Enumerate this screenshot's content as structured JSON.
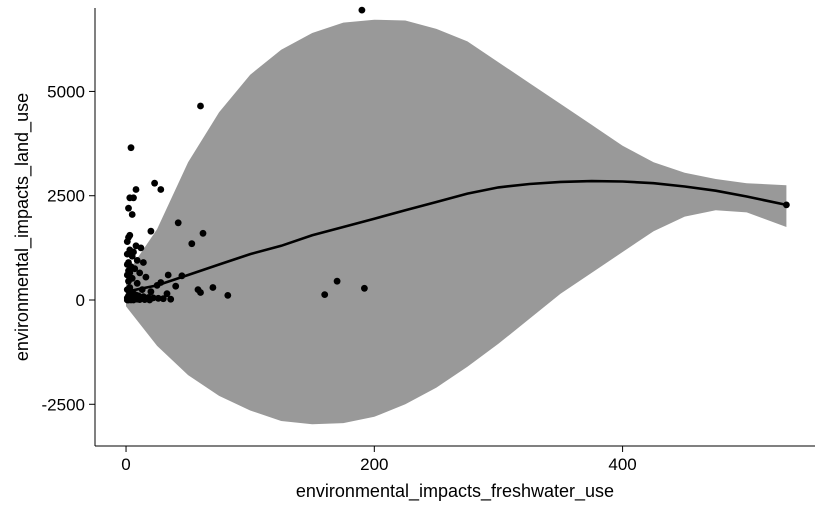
{
  "chart_data": {
    "type": "scatter",
    "title": "",
    "xlabel": "environmental_impacts_freshwater_use",
    "ylabel": "environmental_impacts_land_use",
    "xlim": [
      -25,
      555
    ],
    "ylim": [
      -3500,
      7000
    ],
    "x_ticks": [
      0,
      200,
      400
    ],
    "y_ticks": [
      -2500,
      0,
      2500,
      5000
    ],
    "grid": false,
    "legend": "none",
    "colors": {
      "points": "#000000",
      "trend": "#000000",
      "band": "#999999"
    },
    "points": [
      [
        190,
        6950
      ],
      [
        60,
        4650
      ],
      [
        4,
        3650
      ],
      [
        23,
        2800
      ],
      [
        28,
        2650
      ],
      [
        8,
        2650
      ],
      [
        6,
        2450
      ],
      [
        3,
        2450
      ],
      [
        2,
        2200
      ],
      [
        5,
        2050
      ],
      [
        42,
        1850
      ],
      [
        20,
        1650
      ],
      [
        62,
        1600
      ],
      [
        3,
        1550
      ],
      [
        2,
        1500
      ],
      [
        1,
        1400
      ],
      [
        53,
        1350
      ],
      [
        8,
        1300
      ],
      [
        12,
        1250
      ],
      [
        3,
        1200
      ],
      [
        6,
        1150
      ],
      [
        1,
        1100
      ],
      [
        5,
        1050
      ],
      [
        9,
        950
      ],
      [
        2,
        900
      ],
      [
        14,
        900
      ],
      [
        1,
        850
      ],
      [
        4,
        800
      ],
      [
        7,
        750
      ],
      [
        2,
        700
      ],
      [
        3,
        650
      ],
      [
        11,
        650
      ],
      [
        1,
        600
      ],
      [
        34,
        600
      ],
      [
        45,
        580
      ],
      [
        16,
        550
      ],
      [
        5,
        520
      ],
      [
        170,
        450
      ],
      [
        2,
        450
      ],
      [
        28,
        420
      ],
      [
        25,
        350
      ],
      [
        9,
        400
      ],
      [
        40,
        330
      ],
      [
        70,
        300
      ],
      [
        192,
        280
      ],
      [
        58,
        250
      ],
      [
        60,
        180
      ],
      [
        3,
        300
      ],
      [
        13,
        250
      ],
      [
        20,
        200
      ],
      [
        33,
        150
      ],
      [
        160,
        130
      ],
      [
        82,
        110
      ],
      [
        1,
        250
      ],
      [
        4,
        200
      ],
      [
        6,
        150
      ],
      [
        8,
        120
      ],
      [
        10,
        100
      ],
      [
        14,
        80
      ],
      [
        18,
        60
      ],
      [
        22,
        50
      ],
      [
        26,
        40
      ],
      [
        30,
        30
      ],
      [
        36,
        20
      ],
      [
        2,
        100
      ],
      [
        1,
        50
      ],
      [
        3,
        30
      ],
      [
        5,
        10
      ],
      [
        7,
        60
      ],
      [
        9,
        20
      ],
      [
        11,
        10
      ],
      [
        15,
        10
      ],
      [
        19,
        0
      ],
      [
        1,
        0
      ],
      [
        2,
        0
      ],
      [
        4,
        0
      ],
      [
        6,
        0
      ],
      [
        532,
        2280
      ]
    ],
    "trend": {
      "x": [
        0,
        25,
        50,
        75,
        100,
        125,
        150,
        175,
        200,
        225,
        250,
        275,
        300,
        325,
        350,
        375,
        400,
        425,
        450,
        475,
        500,
        532
      ],
      "y": [
        200,
        350,
        600,
        850,
        1100,
        1300,
        1550,
        1750,
        1950,
        2150,
        2350,
        2550,
        2700,
        2780,
        2830,
        2850,
        2840,
        2800,
        2720,
        2620,
        2480,
        2280
      ],
      "upper": [
        600,
        1700,
        3300,
        4500,
        5400,
        6000,
        6400,
        6650,
        6720,
        6700,
        6500,
        6200,
        5700,
        5200,
        4700,
        4200,
        3700,
        3300,
        3050,
        2900,
        2800,
        2750
      ],
      "lower": [
        -150,
        -1100,
        -1800,
        -2300,
        -2650,
        -2900,
        -2980,
        -2950,
        -2800,
        -2500,
        -2100,
        -1600,
        -1050,
        -450,
        150,
        650,
        1150,
        1650,
        2000,
        2150,
        2100,
        1750
      ]
    }
  }
}
